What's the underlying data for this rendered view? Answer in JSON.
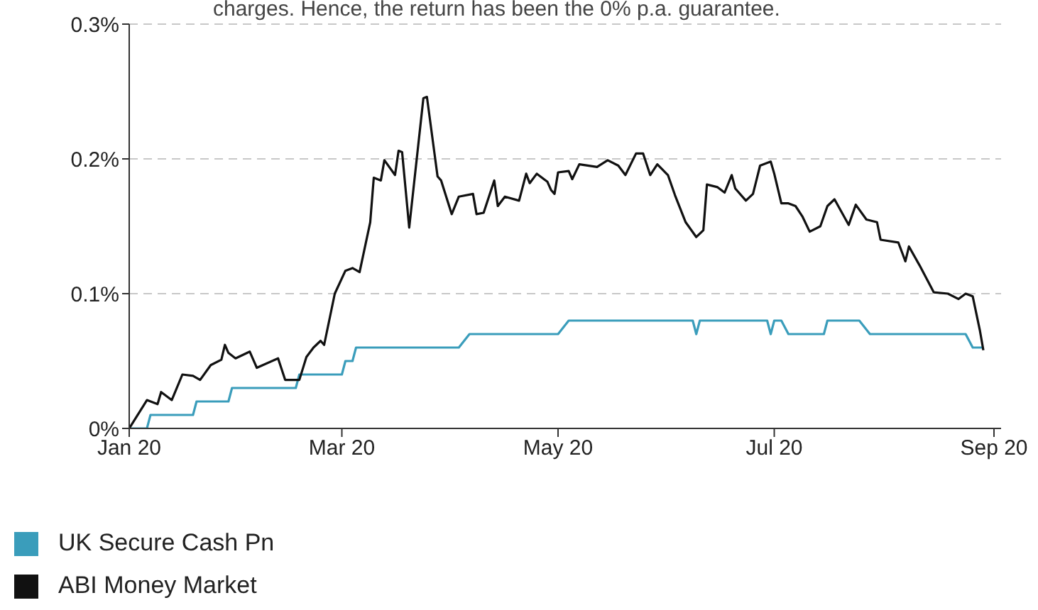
{
  "chart_data": {
    "type": "line",
    "annotations": [
      "charges. Hence, the return has been the 0% p.a. guarantee."
    ],
    "xlim": [
      "2020-01-01",
      "2020-09-03"
    ],
    "xticks": [
      {
        "value": "2020-01-01",
        "label": "Jan 20"
      },
      {
        "value": "2020-03-01",
        "label": "Mar 20"
      },
      {
        "value": "2020-05-01",
        "label": "May 20"
      },
      {
        "value": "2020-07-01",
        "label": "Jul 20"
      },
      {
        "value": "2020-09-01",
        "label": "Sep 20"
      }
    ],
    "ylim": [
      0,
      0.3
    ],
    "yticks": [
      {
        "value": 0,
        "label": "0%"
      },
      {
        "value": 0.1,
        "label": "0.1%"
      },
      {
        "value": 0.2,
        "label": "0.2%"
      },
      {
        "value": 0.3,
        "label": "0.3%"
      }
    ],
    "grid": "y",
    "legend": "bottom",
    "marker": "none",
    "line_style": "solid",
    "series": [
      {
        "name": "UK Secure Cash Pn",
        "color": "#3a9dbb",
        "x": [
          "2020-01-01",
          "2020-01-06",
          "2020-01-07",
          "2020-01-19",
          "2020-01-20",
          "2020-01-29",
          "2020-01-30",
          "2020-02-17",
          "2020-02-18",
          "2020-03-01",
          "2020-03-02",
          "2020-03-04",
          "2020-03-05",
          "2020-04-03",
          "2020-04-06",
          "2020-05-01",
          "2020-05-04",
          "2020-06-08",
          "2020-06-09",
          "2020-06-10",
          "2020-06-29",
          "2020-06-30",
          "2020-07-01",
          "2020-07-03",
          "2020-07-05",
          "2020-07-15",
          "2020-07-16",
          "2020-07-25",
          "2020-07-28",
          "2020-08-24",
          "2020-08-26",
          "2020-08-29"
        ],
        "values": [
          0,
          0,
          0.01,
          0.01,
          0.02,
          0.02,
          0.03,
          0.03,
          0.04,
          0.04,
          0.05,
          0.05,
          0.06,
          0.06,
          0.07,
          0.07,
          0.08,
          0.08,
          0.07,
          0.08,
          0.08,
          0.07,
          0.08,
          0.08,
          0.07,
          0.07,
          0.08,
          0.08,
          0.07,
          0.07,
          0.06,
          0.06
        ]
      },
      {
        "name": "ABI Money Market",
        "color": "#111111",
        "x": [
          "2020-01-01",
          "2020-01-06",
          "2020-01-09",
          "2020-01-10",
          "2020-01-13",
          "2020-01-16",
          "2020-01-19",
          "2020-01-21",
          "2020-01-24",
          "2020-01-27",
          "2020-01-28",
          "2020-01-29",
          "2020-01-31",
          "2020-02-04",
          "2020-02-06",
          "2020-02-12",
          "2020-02-14",
          "2020-02-18",
          "2020-02-20",
          "2020-02-22",
          "2020-02-24",
          "2020-02-25",
          "2020-02-28",
          "2020-03-02",
          "2020-03-04",
          "2020-03-06",
          "2020-03-09",
          "2020-03-10",
          "2020-03-12",
          "2020-03-13",
          "2020-03-16",
          "2020-03-17",
          "2020-03-18",
          "2020-03-20",
          "2020-03-24",
          "2020-03-25",
          "2020-03-28",
          "2020-03-29",
          "2020-04-01",
          "2020-04-03",
          "2020-04-07",
          "2020-04-08",
          "2020-04-10",
          "2020-04-13",
          "2020-04-14",
          "2020-04-16",
          "2020-04-20",
          "2020-04-22",
          "2020-04-23",
          "2020-04-25",
          "2020-04-28",
          "2020-04-29",
          "2020-04-30",
          "2020-05-01",
          "2020-05-04",
          "2020-05-05",
          "2020-05-07",
          "2020-05-12",
          "2020-05-15",
          "2020-05-18",
          "2020-05-20",
          "2020-05-23",
          "2020-05-25",
          "2020-05-27",
          "2020-05-29",
          "2020-06-01",
          "2020-06-03",
          "2020-06-06",
          "2020-06-09",
          "2020-06-11",
          "2020-06-12",
          "2020-06-15",
          "2020-06-17",
          "2020-06-19",
          "2020-06-20",
          "2020-06-23",
          "2020-06-25",
          "2020-06-27",
          "2020-06-30",
          "2020-07-01",
          "2020-07-03",
          "2020-07-05",
          "2020-07-07",
          "2020-07-09",
          "2020-07-11",
          "2020-07-14",
          "2020-07-16",
          "2020-07-18",
          "2020-07-22",
          "2020-07-24",
          "2020-07-27",
          "2020-07-30",
          "2020-07-31",
          "2020-08-05",
          "2020-08-07",
          "2020-08-08",
          "2020-08-11",
          "2020-08-15",
          "2020-08-19",
          "2020-08-22",
          "2020-08-24",
          "2020-08-26",
          "2020-08-28",
          "2020-08-29"
        ],
        "values": [
          0,
          0.021,
          0.018,
          0.027,
          0.021,
          0.04,
          0.039,
          0.036,
          0.047,
          0.051,
          0.062,
          0.056,
          0.052,
          0.057,
          0.045,
          0.052,
          0.036,
          0.036,
          0.053,
          0.06,
          0.065,
          0.062,
          0.1,
          0.117,
          0.119,
          0.116,
          0.153,
          0.186,
          0.184,
          0.199,
          0.188,
          0.206,
          0.205,
          0.149,
          0.245,
          0.246,
          0.187,
          0.184,
          0.159,
          0.172,
          0.174,
          0.159,
          0.16,
          0.184,
          0.165,
          0.172,
          0.169,
          0.189,
          0.182,
          0.189,
          0.183,
          0.177,
          0.174,
          0.19,
          0.191,
          0.185,
          0.196,
          0.194,
          0.199,
          0.195,
          0.188,
          0.204,
          0.204,
          0.188,
          0.196,
          0.188,
          0.173,
          0.153,
          0.142,
          0.147,
          0.181,
          0.179,
          0.175,
          0.188,
          0.178,
          0.169,
          0.174,
          0.195,
          0.198,
          0.189,
          0.167,
          0.167,
          0.165,
          0.157,
          0.146,
          0.15,
          0.165,
          0.17,
          0.151,
          0.166,
          0.155,
          0.153,
          0.14,
          0.138,
          0.124,
          0.135,
          0.121,
          0.101,
          0.1,
          0.096,
          0.1,
          0.098,
          0.073,
          0.058
        ]
      }
    ]
  }
}
